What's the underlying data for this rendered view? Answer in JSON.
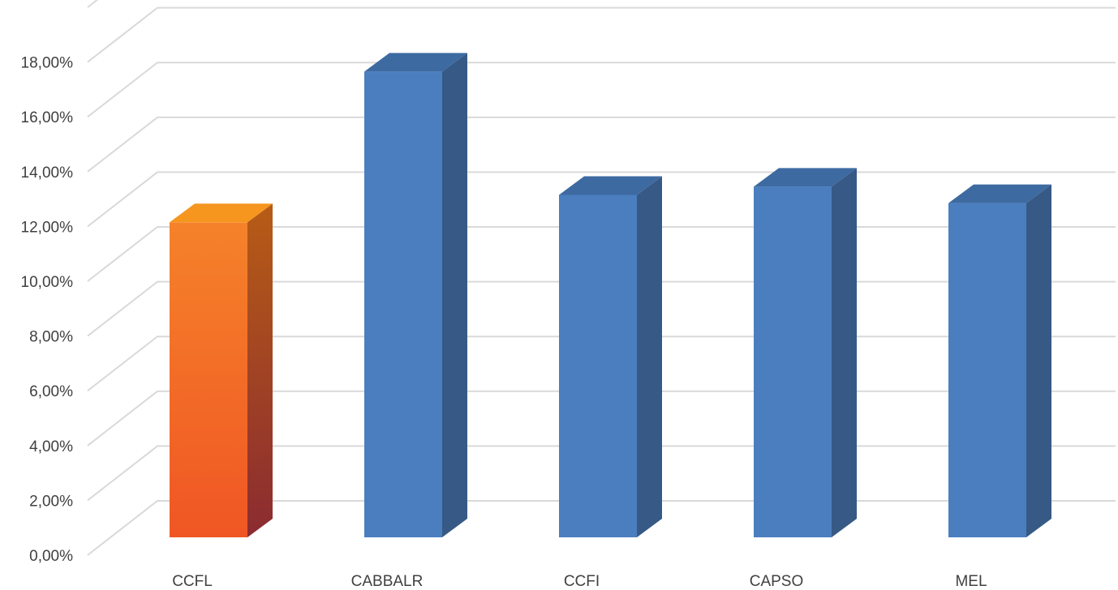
{
  "chart_data": {
    "type": "bar",
    "style": "3d-column",
    "categories": [
      "CCFL",
      "CABBALR",
      "CCFI",
      "CAPSO",
      "MEL"
    ],
    "values": [
      11.5,
      17.0,
      12.5,
      12.8,
      12.2
    ],
    "ylim": [
      0,
      18
    ],
    "y_tick_labels": [
      "0,00%",
      "2,00%",
      "4,00%",
      "6,00%",
      "8,00%",
      "10,00%",
      "12,00%",
      "14,00%",
      "16,00%",
      "18,00%"
    ],
    "y_tick_values": [
      0,
      2,
      4,
      6,
      8,
      10,
      12,
      14,
      16,
      18
    ],
    "grid": true,
    "legend": "none",
    "highlight_index": 0,
    "colors": {
      "bar_front": "#4a7ebf",
      "bar_side": "#365a85",
      "bar_top": "#3d6aa1",
      "highlight_front_top": "#f5822a",
      "highlight_front_bottom": "#f05624",
      "highlight_side_top": "#b75c16",
      "highlight_side_bottom": "#8b2b31",
      "highlight_top": "#f6961f",
      "grid": "#d9d9d9",
      "text": "#404040"
    }
  }
}
